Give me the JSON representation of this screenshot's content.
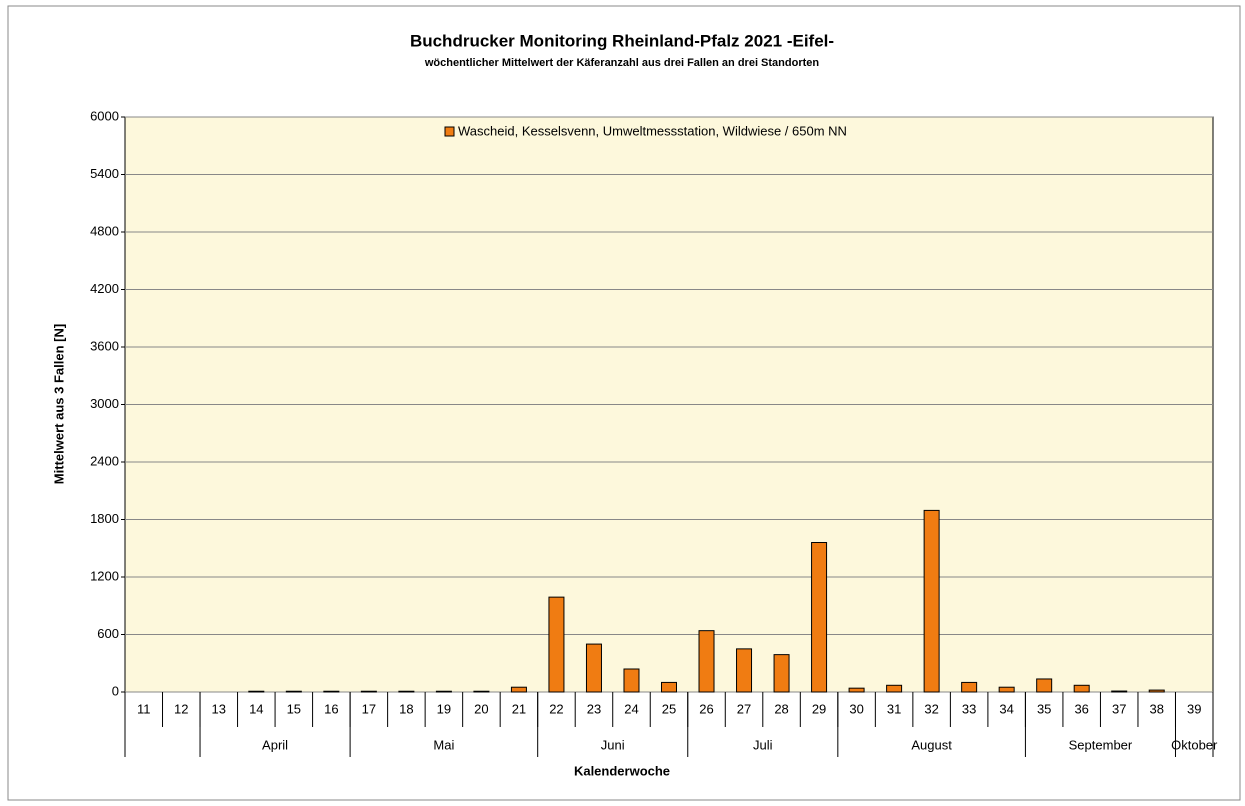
{
  "chart_data": {
    "type": "bar",
    "title": "Buchdrucker Monitoring  Rheinland-Pfalz 2021    -Eifel-",
    "subtitle": "wöchentlicher Mittelwert der Käferanzahl  aus drei Fallen an drei Standorten",
    "x_label": "Kalenderwoche",
    "y_label": "Mittelwert aus 3 Fallen [N]",
    "categories": [
      "11",
      "12",
      "13",
      "14",
      "15",
      "16",
      "17",
      "18",
      "19",
      "20",
      "21",
      "22",
      "23",
      "24",
      "25",
      "26",
      "27",
      "28",
      "29",
      "30",
      "31",
      "32",
      "33",
      "34",
      "35",
      "36",
      "37",
      "38",
      "39"
    ],
    "month_groups": [
      {
        "label": "April",
        "first": "13",
        "last": "16"
      },
      {
        "label": "Mai",
        "first": "17",
        "last": "21"
      },
      {
        "label": "Juni",
        "first": "22",
        "last": "25"
      },
      {
        "label": "Juli",
        "first": "26",
        "last": "29"
      },
      {
        "label": "August",
        "first": "30",
        "last": "34"
      },
      {
        "label": "September",
        "first": "35",
        "last": "38"
      },
      {
        "label": "Oktober",
        "first": "39",
        "last": "39"
      }
    ],
    "series": [
      {
        "name": "Wascheid, Kesselsvenn, Umweltmessstation, Wildwiese / 650m NN",
        "color": "#f07c12",
        "values": [
          0,
          0,
          0,
          8,
          8,
          8,
          8,
          8,
          8,
          8,
          50,
          990,
          500,
          240,
          100,
          640,
          450,
          390,
          1560,
          40,
          70,
          1895,
          100,
          50,
          136,
          70,
          10,
          20,
          0
        ]
      }
    ],
    "ylim": [
      0,
      6000
    ],
    "yticks": [
      0,
      600,
      1200,
      1800,
      2400,
      3000,
      3600,
      4200,
      4800,
      5400,
      6000
    ],
    "grid": true,
    "legend": "top"
  }
}
